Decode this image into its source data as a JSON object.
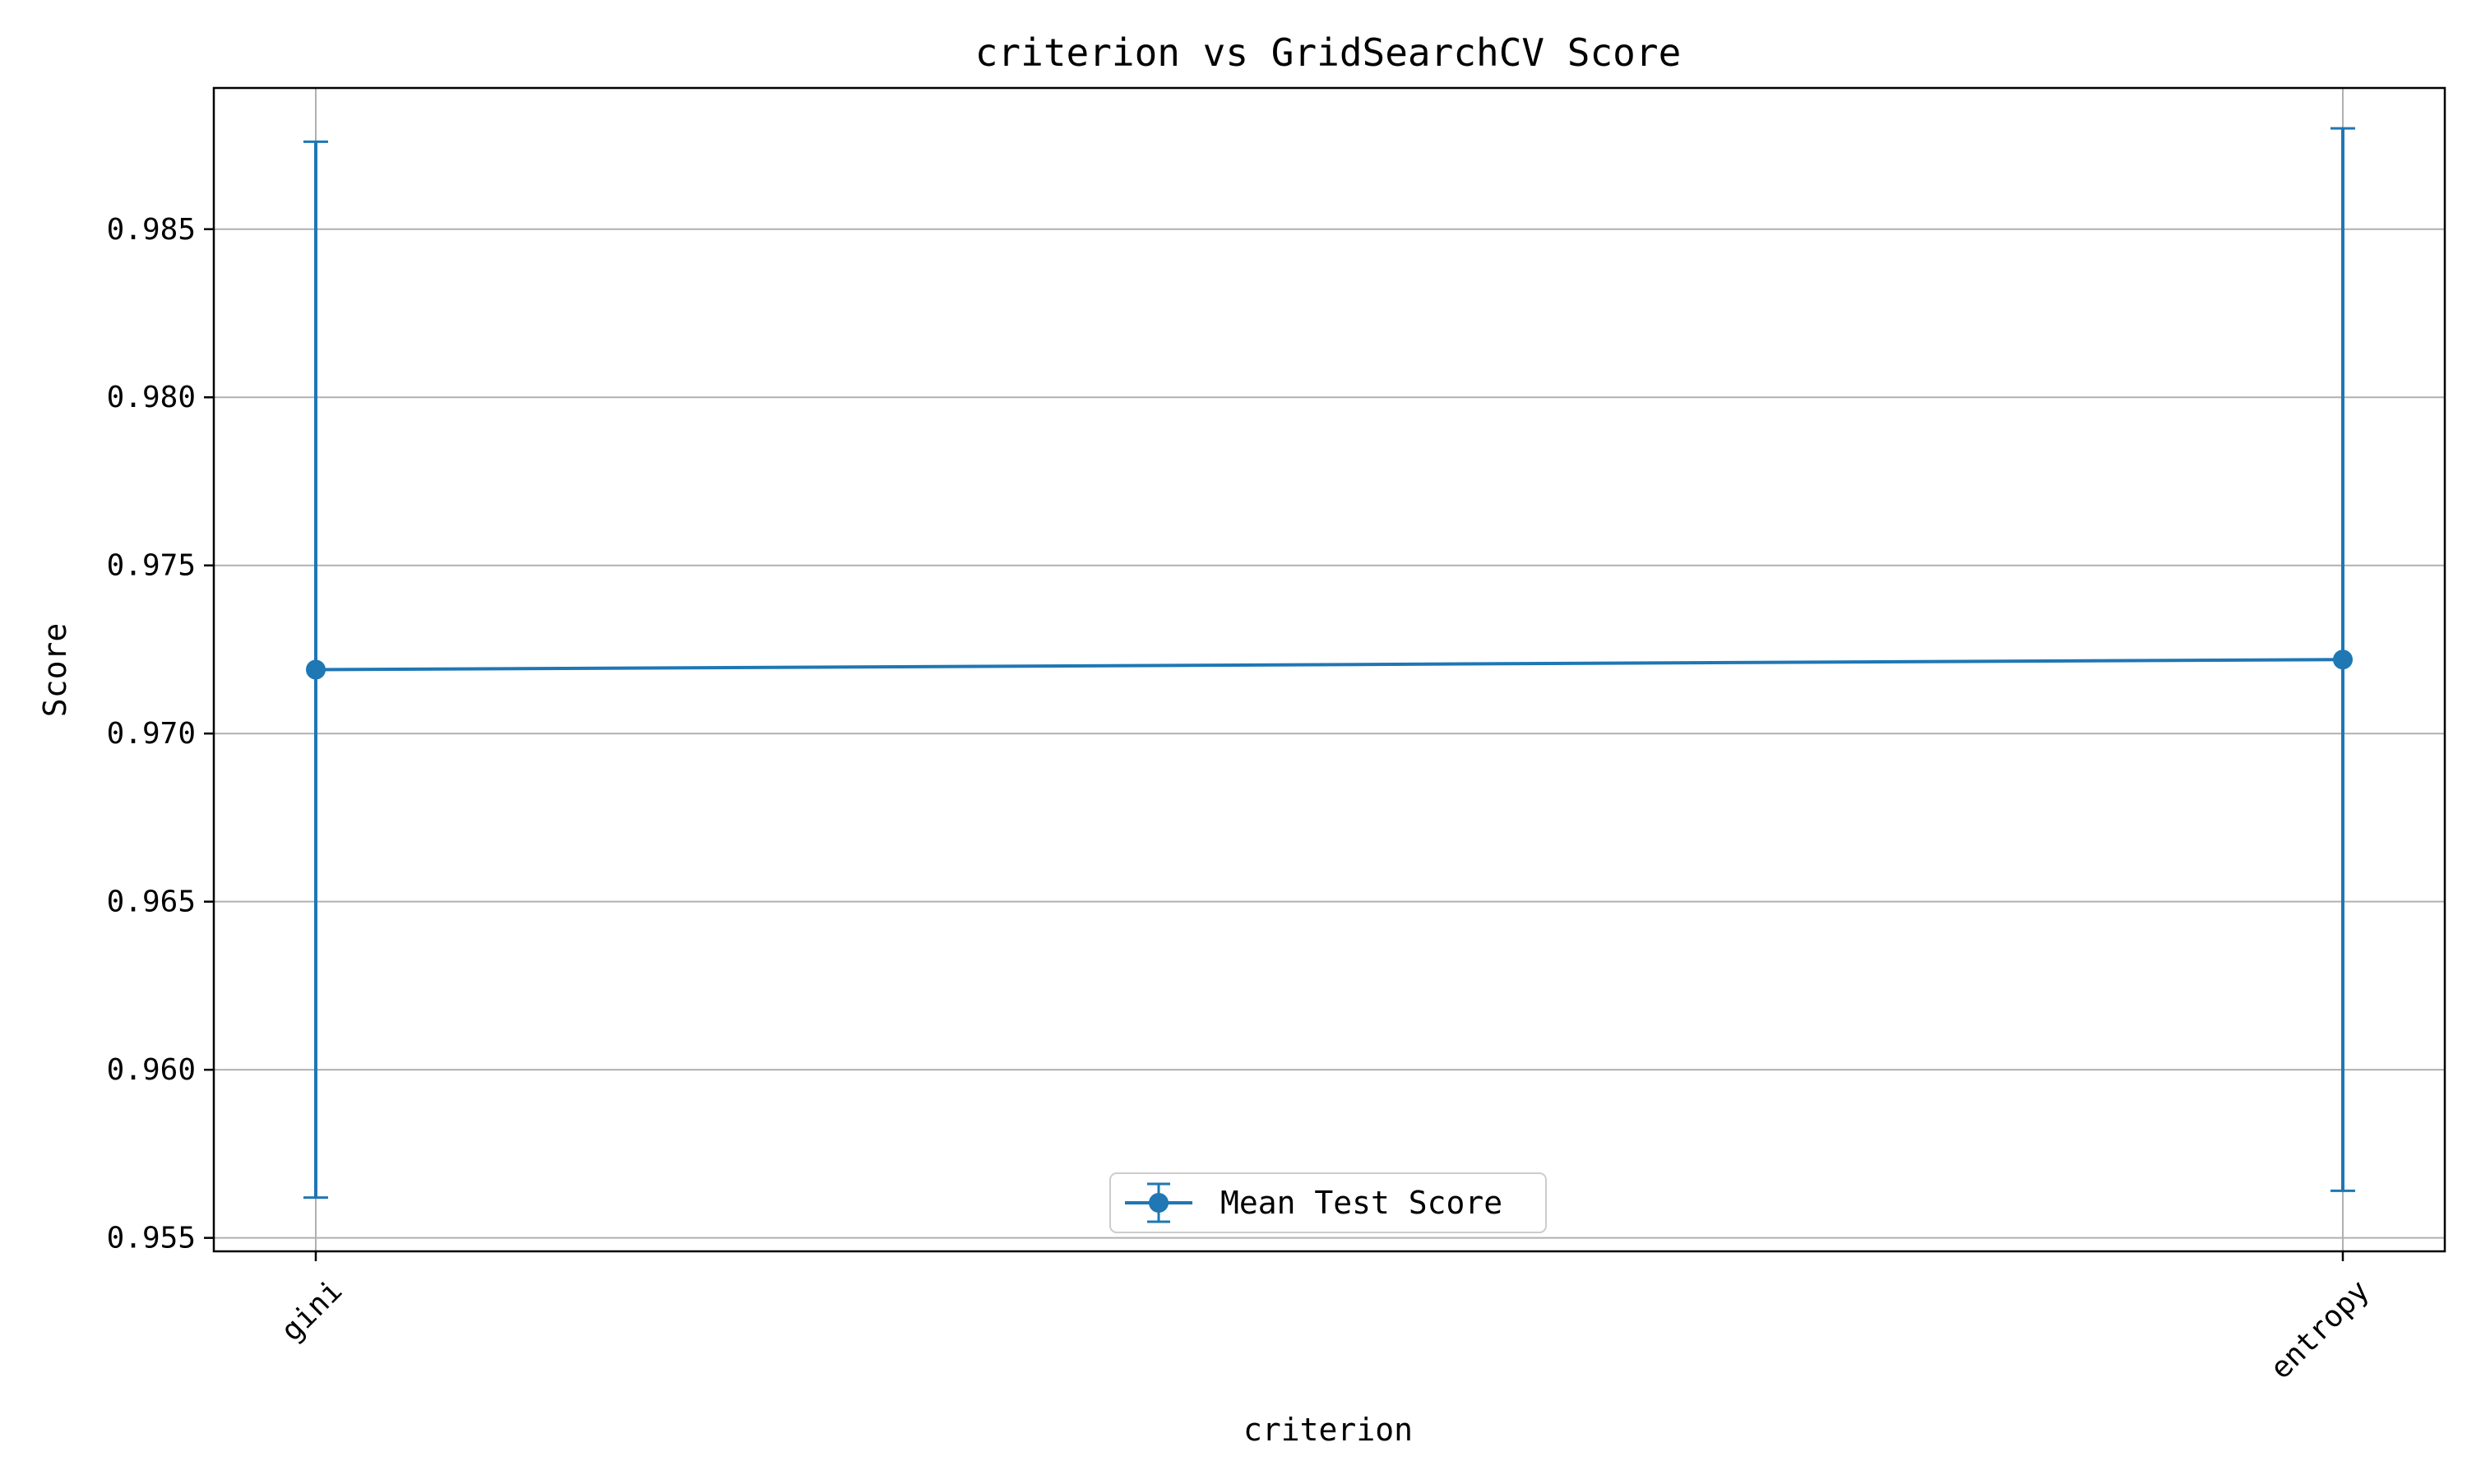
{
  "chart_data": {
    "type": "line",
    "title": "criterion vs GridSearchCV Score",
    "xlabel": "criterion",
    "ylabel": "Score",
    "categories": [
      "gini",
      "entropy"
    ],
    "series": [
      {
        "name": "Mean Test Score",
        "values": [
          0.9719,
          0.9722
        ],
        "error_lower": [
          0.9562,
          0.9564
        ],
        "error_upper": [
          0.9876,
          0.988
        ],
        "color": "#1f77b4"
      }
    ],
    "ylim": [
      0.9546,
      0.9892
    ],
    "yticks": [
      "0.955",
      "0.960",
      "0.965",
      "0.970",
      "0.975",
      "0.980",
      "0.985"
    ],
    "ytick_values": [
      0.955,
      0.96,
      0.965,
      0.97,
      0.975,
      0.98,
      0.985
    ],
    "grid": true,
    "legend_position": "lower center",
    "xtick_rotation_deg": 45
  }
}
